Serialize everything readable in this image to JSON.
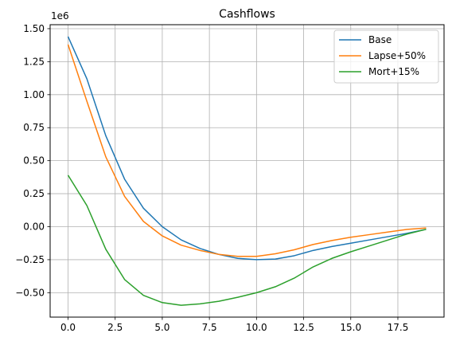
{
  "chart_data": {
    "type": "line",
    "title": "Cashflows",
    "xlabel": "",
    "ylabel": "",
    "y_offset_label": "1e6",
    "xlim": [
      -0.95,
      19.95
    ],
    "ylim": [
      -0.685,
      1.53
    ],
    "x_ticks": [
      0.0,
      2.5,
      5.0,
      7.5,
      10.0,
      12.5,
      15.0,
      17.5
    ],
    "x_tick_labels": [
      "0.0",
      "2.5",
      "5.0",
      "7.5",
      "10.0",
      "12.5",
      "15.0",
      "17.5"
    ],
    "y_ticks": [
      -0.5,
      -0.25,
      0.0,
      0.25,
      0.5,
      0.75,
      1.0,
      1.25,
      1.5
    ],
    "y_tick_labels": [
      "−0.50",
      "−0.25",
      "0.00",
      "0.25",
      "0.50",
      "0.75",
      "1.00",
      "1.25",
      "1.50"
    ],
    "grid": true,
    "legend_position": "top-right",
    "x": [
      0,
      1,
      2,
      3,
      4,
      5,
      6,
      7,
      8,
      9,
      10,
      11,
      12,
      13,
      14,
      15,
      16,
      17,
      18,
      19
    ],
    "series": [
      {
        "name": "Base",
        "color": "#1f77b4",
        "values": [
          1.44,
          1.12,
          0.69,
          0.36,
          0.14,
          0.0,
          -0.1,
          -0.165,
          -0.21,
          -0.24,
          -0.25,
          -0.245,
          -0.22,
          -0.18,
          -0.15,
          -0.125,
          -0.1,
          -0.075,
          -0.05,
          -0.02
        ]
      },
      {
        "name": "Lapse+50%",
        "color": "#ff7f0e",
        "values": [
          1.38,
          0.95,
          0.53,
          0.23,
          0.04,
          -0.07,
          -0.14,
          -0.18,
          -0.21,
          -0.225,
          -0.225,
          -0.205,
          -0.175,
          -0.135,
          -0.105,
          -0.08,
          -0.06,
          -0.04,
          -0.02,
          -0.01
        ]
      },
      {
        "name": "Mort+15%",
        "color": "#2ca02c",
        "values": [
          0.39,
          0.16,
          -0.17,
          -0.4,
          -0.52,
          -0.575,
          -0.595,
          -0.585,
          -0.565,
          -0.535,
          -0.5,
          -0.455,
          -0.39,
          -0.305,
          -0.24,
          -0.19,
          -0.145,
          -0.1,
          -0.055,
          -0.02
        ]
      }
    ]
  }
}
